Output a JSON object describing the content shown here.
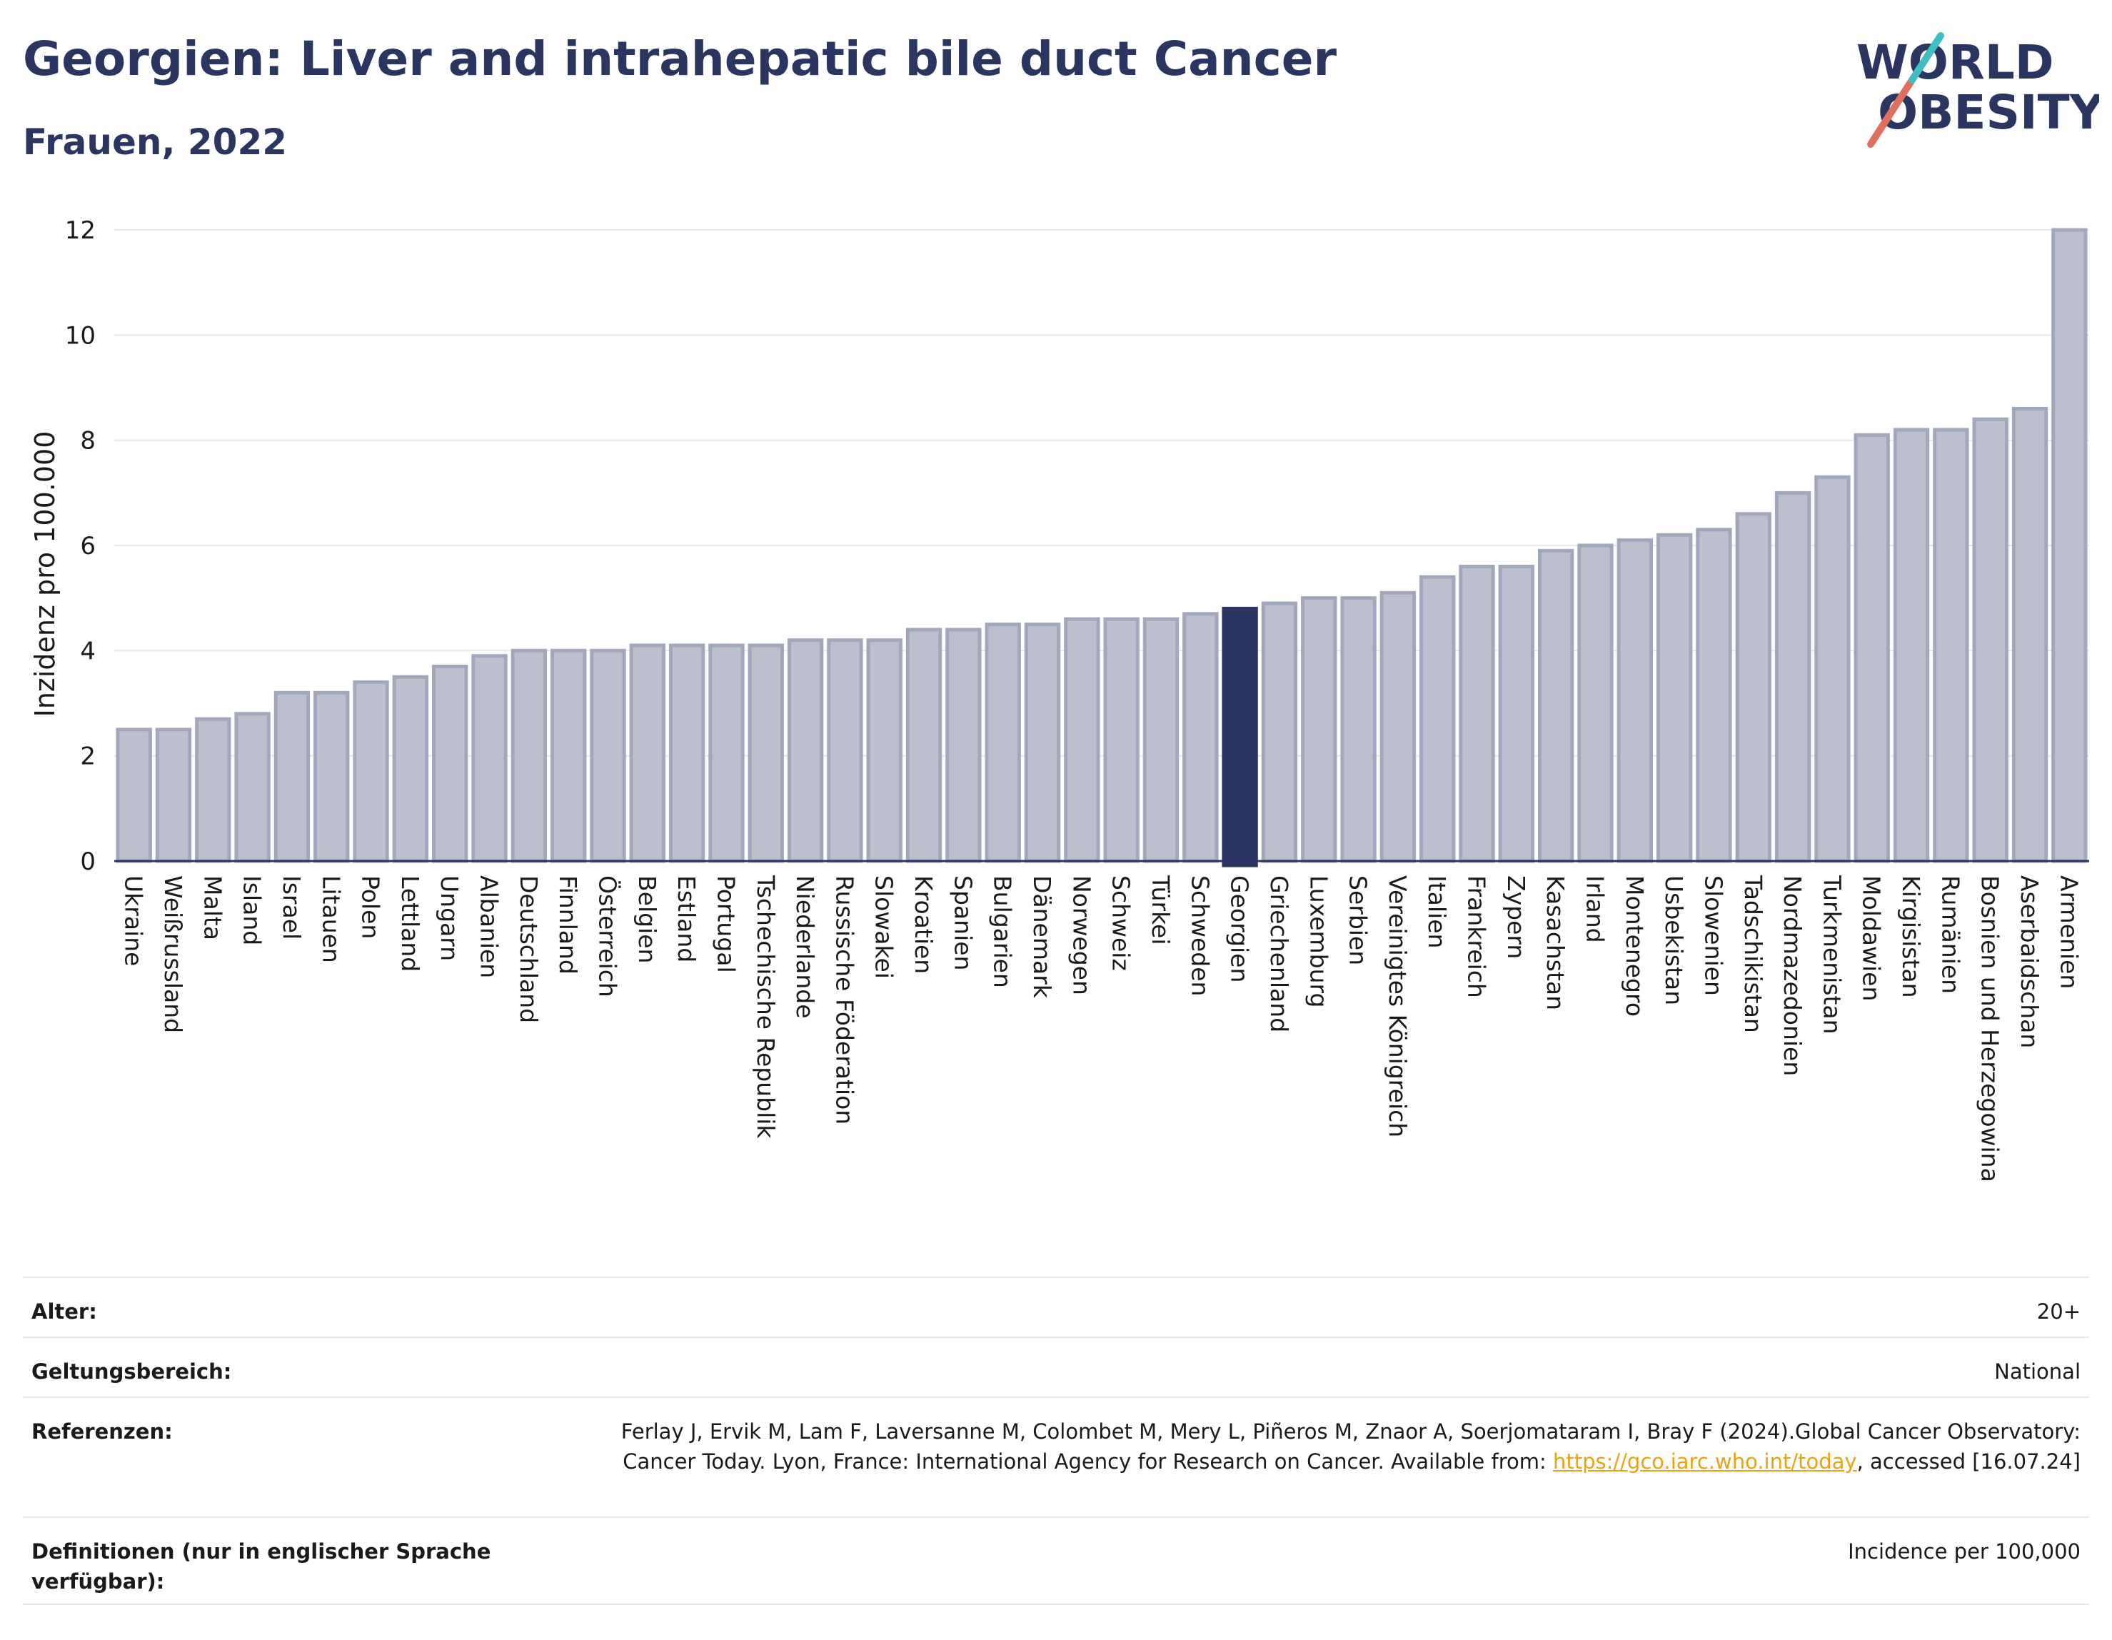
{
  "header": {
    "title": "Georgien: Liver and intrahepatic bile duct Cancer",
    "subtitle": "Frauen, 2022"
  },
  "logo": {
    "line1": "WORLD",
    "line2": "OBESITY"
  },
  "chart_data": {
    "type": "bar",
    "ylabel": "Inzidenz pro 100.000",
    "ylim": [
      0,
      12
    ],
    "yticks": [
      0,
      2,
      4,
      6,
      8,
      10,
      12
    ],
    "grid": true,
    "highlight": "Georgien",
    "colors": {
      "bar": "#bcc0ce",
      "bar_edge": "#a2a7bb",
      "highlight": "#2b3561",
      "grid": "#e6e6ea",
      "axis": "#2b3561"
    },
    "categories": [
      "Ukraine",
      "Weißrussland",
      "Malta",
      "Island",
      "Israel",
      "Litauen",
      "Polen",
      "Lettland",
      "Ungarn",
      "Albanien",
      "Deutschland",
      "Finnland",
      "Österreich",
      "Belgien",
      "Estland",
      "Portugal",
      "Tschechische Republik",
      "Niederlande",
      "Russische Föderation",
      "Slowakei",
      "Kroatien",
      "Spanien",
      "Bulgarien",
      "Dänemark",
      "Norwegen",
      "Schweiz",
      "Türkei",
      "Schweden",
      "Georgien",
      "Griechenland",
      "Luxemburg",
      "Serbien",
      "Vereinigtes Königreich",
      "Italien",
      "Frankreich",
      "Zypern",
      "Kasachstan",
      "Irland",
      "Montenegro",
      "Usbekistan",
      "Slowenien",
      "Tadschikistan",
      "Nordmazedonien",
      "Turkmenistan",
      "Moldawien",
      "Kirgisistan",
      "Rumänien",
      "Bosnien und Herzegowina",
      "Aserbaidschan",
      "Armenien"
    ],
    "values": [
      2.5,
      2.5,
      2.7,
      2.8,
      3.2,
      3.2,
      3.4,
      3.5,
      3.7,
      3.9,
      4.0,
      4.0,
      4.0,
      4.1,
      4.1,
      4.1,
      4.1,
      4.2,
      4.2,
      4.2,
      4.4,
      4.4,
      4.5,
      4.5,
      4.6,
      4.6,
      4.6,
      4.7,
      4.8,
      4.9,
      5.0,
      5.0,
      5.1,
      5.4,
      5.6,
      5.6,
      5.9,
      6.0,
      6.1,
      6.2,
      6.3,
      6.6,
      7.0,
      7.3,
      8.1,
      8.2,
      8.2,
      8.4,
      8.6,
      12.0
    ]
  },
  "info": {
    "rows": [
      {
        "key": "Alter:",
        "value": "20+"
      },
      {
        "key": "Geltungsbereich:",
        "value": "National"
      },
      {
        "key": "Referenzen:",
        "value_pre": "Ferlay J, Ervik M, Lam F, Laversanne M, Colombet M, Mery L, Piñeros M, Znaor A, Soerjomataram I, Bray F (2024).Global Cancer Observatory: Cancer Today. Lyon, France: International Agency for Research on Cancer. Available from: ",
        "link": "https://gco.iarc.who.int/today",
        "value_post": ", accessed [16.07.24]"
      },
      {
        "key": "Definitionen (nur in englischer Sprache verfügbar):",
        "value": "Incidence per 100,000"
      }
    ]
  }
}
